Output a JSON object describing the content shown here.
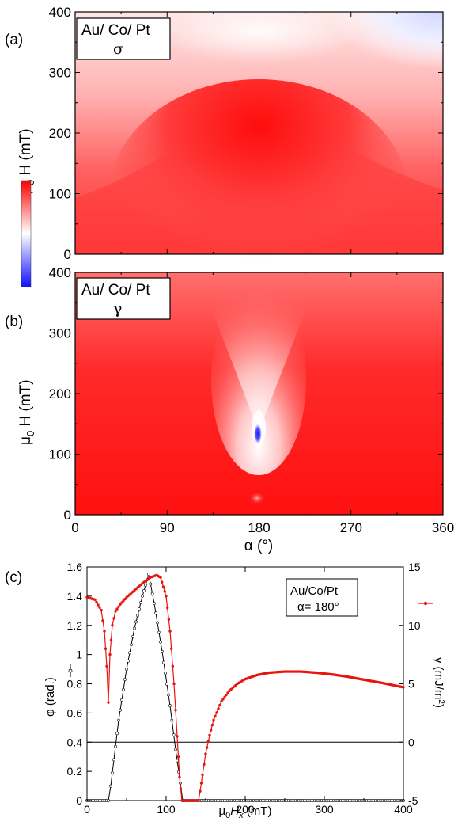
{
  "chart_data": [
    {
      "type": "heatmap",
      "panel_label": "(a)",
      "legend_line1": "Au/ Co/ Pt",
      "legend_line2": "σ",
      "ylabel_main": "μ",
      "ylabel_sub": "0",
      "ylabel_rest": " H (mT)",
      "x_range": [
        0,
        360
      ],
      "ylim": [
        0,
        400
      ],
      "y_ticks": [
        "0",
        "100",
        "200",
        "300",
        "400"
      ],
      "colormap": {
        "low": "#1a1aff",
        "mid": "#ffffff",
        "high": "#ff0000"
      },
      "features": [
        "red maximum near α = 180°, low field",
        "white band rising to a peak at α = 180°",
        "light blue region at high field near α = 360°"
      ]
    },
    {
      "type": "heatmap",
      "panel_label": "(b)",
      "legend_line1": "Au/ Co/ Pt",
      "legend_line2": "γ",
      "ylabel_main": "μ",
      "ylabel_sub": "0",
      "ylabel_rest": " H (mT)",
      "xlabel": "α (°)",
      "x_range": [
        0,
        360
      ],
      "ylim": [
        0,
        400
      ],
      "x_ticks": [
        "0",
        "90",
        "180",
        "270",
        "360"
      ],
      "y_ticks": [
        "0",
        "100",
        "200",
        "300",
        "400"
      ],
      "features": [
        "blue spot at α = 180°, μ0H ≈ 125 mT",
        "white plume above the spot toward high field",
        "faint light spot at α = 180°, μ0H ≈ 25 mT"
      ]
    },
    {
      "type": "line",
      "panel_label": "(c)",
      "legend_line1": "Au/Co/Pt",
      "legend_line2": "α= 180°",
      "xlabel_main": "μ",
      "xlabel_sub": "0",
      "xlabel_var": "H",
      "xlabel_var_sub": "x",
      "xlabel_rest": " (mT)",
      "ylabel_left": "φ (rad.)",
      "ylabel_right_main": "γ (mJ/m",
      "ylabel_right_sup": "2",
      "ylabel_right_end": ")",
      "xlim": [
        0,
        400
      ],
      "ylim_left": [
        0,
        1.6
      ],
      "ylim_right": [
        -5,
        15
      ],
      "x_ticks": [
        "0",
        "100",
        "200",
        "300",
        "400"
      ],
      "y_ticks_left": [
        "0",
        "0.2",
        "0.4",
        "0.6",
        "0.8",
        "1",
        "1.2",
        "1.4",
        "1.6"
      ],
      "y_ticks_right": [
        "-5",
        "0",
        "5",
        "10",
        "15"
      ],
      "series": [
        {
          "axis": "left",
          "color": "#000000",
          "marker": "open-circle",
          "x": [
            0,
            27,
            30,
            40,
            50,
            60,
            70,
            78,
            85,
            95,
            105,
            112,
            118,
            121,
            400
          ],
          "y": [
            0,
            0,
            0.1,
            0.55,
            0.9,
            1.18,
            1.4,
            1.55,
            1.35,
            1.02,
            0.65,
            0.35,
            0.12,
            0,
            0
          ]
        },
        {
          "axis": "right",
          "color": "#e8140e",
          "marker": "filled-dot",
          "x": [
            0,
            10,
            18,
            22,
            25,
            27,
            29,
            32,
            36,
            42,
            50,
            60,
            70,
            80,
            88,
            93,
            100,
            105,
            110,
            114,
            117,
            120,
            122,
            141,
            143,
            146,
            150,
            155,
            160,
            170,
            180,
            190,
            200,
            215,
            230,
            250,
            270,
            290,
            310,
            330,
            350,
            375,
            400
          ],
          "y": [
            12.4,
            12.2,
            11.3,
            9.5,
            6.5,
            3.4,
            7.5,
            10.0,
            11.2,
            11.8,
            12.4,
            13.0,
            13.6,
            14.1,
            14.3,
            14.1,
            12.5,
            9.5,
            5.0,
            0.5,
            -3.0,
            -5,
            -5,
            -5,
            -4.2,
            -2.8,
            -1.0,
            0.6,
            1.9,
            3.5,
            4.4,
            5.0,
            5.4,
            5.75,
            5.95,
            6.05,
            6.05,
            5.95,
            5.8,
            5.6,
            5.35,
            5.05,
            4.7
          ]
        }
      ],
      "reference_line_right": 0
    }
  ]
}
